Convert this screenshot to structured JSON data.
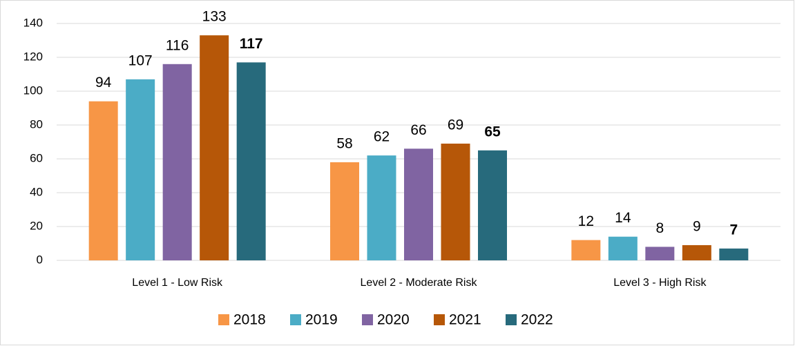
{
  "chart_data": {
    "type": "bar",
    "categories": [
      "Level 1 - Low Risk",
      "Level 2 - Moderate Risk",
      "Level 3 - High Risk"
    ],
    "series": [
      {
        "name": "2018",
        "color": "#f79646",
        "values": [
          94,
          58,
          12
        ]
      },
      {
        "name": "2019",
        "color": "#4bacc6",
        "values": [
          107,
          62,
          14
        ]
      },
      {
        "name": "2020",
        "color": "#8064a2",
        "values": [
          116,
          66,
          8
        ]
      },
      {
        "name": "2021",
        "color": "#b65708",
        "values": [
          133,
          69,
          9
        ]
      },
      {
        "name": "2022",
        "color": "#276a7c",
        "values": [
          117,
          65,
          7
        ],
        "bold_labels": true
      }
    ],
    "ylim": [
      0,
      140
    ],
    "yticks": [
      0,
      20,
      40,
      60,
      80,
      100,
      120,
      140
    ],
    "grid": true,
    "legend": "bottom"
  }
}
